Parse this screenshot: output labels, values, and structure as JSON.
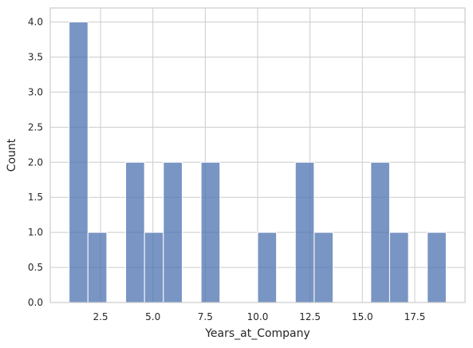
{
  "chart_data": {
    "type": "histogram",
    "xlabel": "Years_at_Company",
    "ylabel": "Count",
    "xlim": [
      0.1,
      19.9
    ],
    "ylim": [
      0,
      4.2
    ],
    "xticks": [
      2.5,
      5.0,
      7.5,
      10.0,
      12.5,
      15.0,
      17.5
    ],
    "xtick_labels": [
      "2.5",
      "5.0",
      "7.5",
      "10.0",
      "12.5",
      "15.0",
      "17.5"
    ],
    "yticks": [
      0.0,
      0.5,
      1.0,
      1.5,
      2.0,
      2.5,
      3.0,
      3.5,
      4.0
    ],
    "ytick_labels": [
      "0.0",
      "0.5",
      "1.0",
      "1.5",
      "2.0",
      "2.5",
      "3.0",
      "3.5",
      "4.0"
    ],
    "grid": true,
    "bar_color": "#4c72b0",
    "bins": [
      {
        "x0": 1.0,
        "x1": 1.9,
        "count": 4
      },
      {
        "x0": 1.9,
        "x1": 2.8,
        "count": 1
      },
      {
        "x0": 2.8,
        "x1": 3.7,
        "count": 0
      },
      {
        "x0": 3.7,
        "x1": 4.6,
        "count": 2
      },
      {
        "x0": 4.6,
        "x1": 5.5,
        "count": 1
      },
      {
        "x0": 5.5,
        "x1": 6.4,
        "count": 2
      },
      {
        "x0": 6.4,
        "x1": 7.3,
        "count": 0
      },
      {
        "x0": 7.3,
        "x1": 8.2,
        "count": 2
      },
      {
        "x0": 8.2,
        "x1": 9.1,
        "count": 0
      },
      {
        "x0": 9.1,
        "x1": 10.0,
        "count": 0
      },
      {
        "x0": 10.0,
        "x1": 10.9,
        "count": 1
      },
      {
        "x0": 10.9,
        "x1": 11.8,
        "count": 0
      },
      {
        "x0": 11.8,
        "x1": 12.7,
        "count": 2
      },
      {
        "x0": 12.7,
        "x1": 13.6,
        "count": 1
      },
      {
        "x0": 13.6,
        "x1": 14.5,
        "count": 0
      },
      {
        "x0": 14.5,
        "x1": 15.4,
        "count": 0
      },
      {
        "x0": 15.4,
        "x1": 16.3,
        "count": 2
      },
      {
        "x0": 16.3,
        "x1": 17.2,
        "count": 1
      },
      {
        "x0": 17.2,
        "x1": 18.1,
        "count": 0
      },
      {
        "x0": 18.1,
        "x1": 19.0,
        "count": 1
      }
    ]
  }
}
